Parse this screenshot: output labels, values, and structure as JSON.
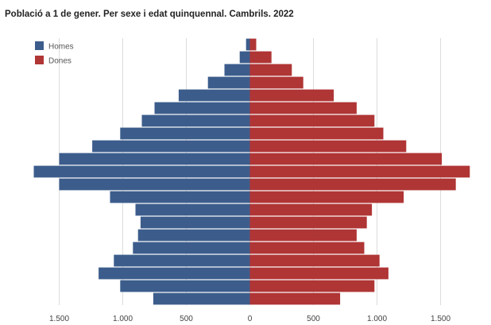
{
  "chart_data": {
    "type": "bar",
    "orientation": "horizontal-population-pyramid",
    "title": "Població a 1 de gener. Per sexe i edat quinquennal. Cambrils. 2022",
    "xlim": [
      -1500,
      1750
    ],
    "x_ticks": [
      {
        "value": -1500,
        "label": "1.500"
      },
      {
        "value": -1000,
        "label": "1.000"
      },
      {
        "value": -500,
        "label": "500"
      },
      {
        "value": 0,
        "label": "0"
      },
      {
        "value": 500,
        "label": "500"
      },
      {
        "value": 1000,
        "label": "1.000"
      },
      {
        "value": 1500,
        "label": "1.500"
      }
    ],
    "grid": true,
    "legend_position": "top-left",
    "age_groups_count": 21,
    "series": [
      {
        "name": "Homes",
        "color": "#3c5d8c",
        "values": [
          760,
          1020,
          1190,
          1070,
          920,
          880,
          860,
          900,
          1100,
          1500,
          1700,
          1500,
          1240,
          1020,
          850,
          750,
          560,
          330,
          200,
          80,
          30
        ]
      },
      {
        "name": "Dones",
        "color": "#b03535",
        "values": [
          710,
          980,
          1090,
          1020,
          900,
          840,
          920,
          960,
          1210,
          1620,
          1730,
          1510,
          1230,
          1050,
          980,
          840,
          660,
          420,
          330,
          170,
          50
        ]
      }
    ]
  }
}
